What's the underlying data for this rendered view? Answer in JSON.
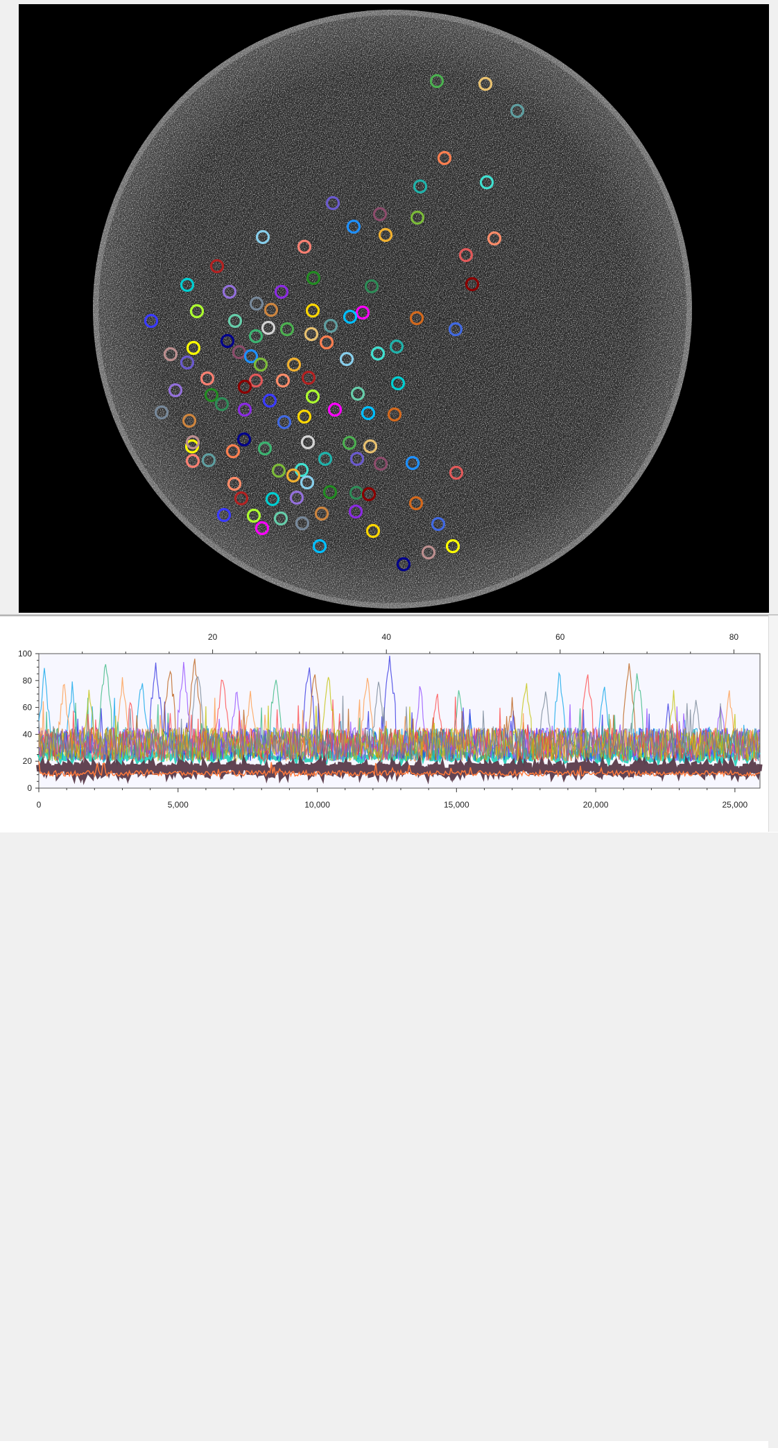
{
  "image_view": {
    "icon": "roi-overlay-image",
    "roi_colors": [
      "#4caf50",
      "#e8c170",
      "#5f9ea0",
      "#ff7f50",
      "#40e0d0",
      "#20b2aa",
      "#6a5acd",
      "#8b4c6b",
      "#1e90ff",
      "#7cbb3a",
      "#f0b030",
      "#87ceeb",
      "#fa8072",
      "#e05a5a",
      "#ff8c69",
      "#b22222",
      "#00ced1",
      "#9370db",
      "#228b22",
      "#2e8b57",
      "#8b0000",
      "#3a3aff",
      "#adff2f",
      "#66cdaa",
      "#778899",
      "#cd853f",
      "#8a2be2",
      "#ffd700",
      "#ff00ff",
      "#00bfff",
      "#d2691e",
      "#4169e1",
      "#ffff00",
      "#bc8f8f",
      "#00008b",
      "#3cb371",
      "#d3d3d3"
    ]
  },
  "trace_plot": {
    "y_ticks": [
      "0",
      "20",
      "40",
      "60",
      "80",
      "100"
    ],
    "top_ticks": [
      "20",
      "40",
      "60",
      "80"
    ],
    "bottom_ticks": [
      "0",
      "5,000",
      "10,000",
      "15,000",
      "20,000",
      "25,000"
    ]
  },
  "chart_data": {
    "type": "line",
    "title": "",
    "xlabel": "",
    "ylabel": "",
    "xlim": [
      0,
      25900
    ],
    "ylim": [
      0,
      100
    ],
    "x2lim": [
      0,
      83
    ],
    "x2_ticks": [
      20,
      40,
      60,
      80
    ],
    "y_ticks": [
      0,
      20,
      40,
      60,
      80,
      100
    ],
    "x_ticks": [
      0,
      5000,
      10000,
      15000,
      20000,
      25000
    ],
    "grid": false,
    "note_series": "many overlapping colored fluorescence traces, baseline ~8-25, peaks up to ~100",
    "series": [
      {
        "color": "#00a2e8",
        "peaks": [
          [
            200,
            90
          ],
          [
            1200,
            80
          ],
          [
            3700,
            85
          ],
          [
            18700,
            90
          ],
          [
            20300,
            80
          ]
        ]
      },
      {
        "color": "#2a2ae0",
        "peaks": [
          [
            4200,
            97
          ],
          [
            9700,
            96
          ],
          [
            12600,
            100
          ],
          [
            22600,
            65
          ]
        ]
      },
      {
        "color": "#b8580c",
        "peaks": [
          [
            4700,
            96
          ],
          [
            5600,
            100
          ],
          [
            9900,
            90
          ],
          [
            17000,
            70
          ],
          [
            21200,
            95
          ]
        ]
      },
      {
        "color": "#ff9640",
        "peaks": [
          [
            900,
            82
          ],
          [
            3000,
            86
          ],
          [
            7600,
            78
          ],
          [
            11800,
            88
          ],
          [
            24800,
            76
          ]
        ]
      },
      {
        "color": "#2fb67c",
        "peaks": [
          [
            2400,
            98
          ],
          [
            8500,
            90
          ],
          [
            15100,
            80
          ],
          [
            21500,
            93
          ]
        ]
      },
      {
        "color": "#8e44ff",
        "peaks": [
          [
            5200,
            94
          ],
          [
            7100,
            78
          ],
          [
            13700,
            80
          ],
          [
            24500,
            70
          ]
        ]
      },
      {
        "color": "#ff4040",
        "peaks": [
          [
            3300,
            70
          ],
          [
            6600,
            88
          ],
          [
            14300,
            75
          ],
          [
            19700,
            92
          ]
        ]
      },
      {
        "color": "#c0c000",
        "peaks": [
          [
            1800,
            78
          ],
          [
            10400,
            88
          ],
          [
            17500,
            85
          ],
          [
            22800,
            74
          ]
        ]
      },
      {
        "color": "#708090",
        "peaks": [
          [
            5700,
            95
          ],
          [
            12200,
            84
          ],
          [
            18200,
            80
          ],
          [
            23600,
            72
          ]
        ]
      }
    ],
    "baseline_band": {
      "color": "#5a3a4a",
      "low": 10,
      "high": 18
    },
    "aqua_band": {
      "color": "#20d0b8",
      "low": 16,
      "high": 28
    }
  }
}
